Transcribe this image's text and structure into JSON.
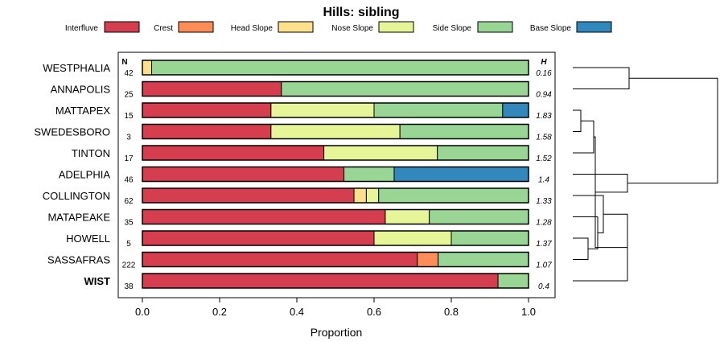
{
  "chart_data": {
    "type": "bar",
    "orientation": "horizontal",
    "stacked": true,
    "title": "Hills: sibling",
    "xlabel": "Proportion",
    "xlim": [
      0,
      1
    ],
    "xticks": [
      "0.0",
      "0.2",
      "0.4",
      "0.6",
      "0.8",
      "1.0"
    ],
    "xtick_values": [
      0,
      0.2,
      0.4,
      0.6,
      0.8,
      1.0
    ],
    "n_header": "N",
    "h_header": "H",
    "categories": [
      "WESTPHALIA",
      "ANNAPOLIS",
      "MATTAPEX",
      "SWEDESBORO",
      "TINTON",
      "ADELPHIA",
      "COLLINGTON",
      "MATAPEAKE",
      "HOWELL",
      "SASSAFRAS",
      "WIST"
    ],
    "bold_category": "WIST",
    "n": [
      "42",
      "25",
      "15",
      "3",
      "17",
      "46",
      "62",
      "35",
      "5",
      "222",
      "38"
    ],
    "h": [
      "0.16",
      "0.94",
      "1.83",
      "1.58",
      "1.52",
      "1.4",
      "1.33",
      "1.28",
      "1.37",
      "1.07",
      "0.4"
    ],
    "series": [
      {
        "name": "Interfluve",
        "color": "#d53e4f",
        "values": [
          0,
          0.36,
          0.333,
          0.333,
          0.47,
          0.522,
          0.548,
          0.629,
          0.6,
          0.712,
          0.921
        ]
      },
      {
        "name": "Crest",
        "color": "#fc8d59",
        "values": [
          0,
          0,
          0,
          0,
          0,
          0,
          0,
          0,
          0,
          0.054,
          0
        ]
      },
      {
        "name": "Head Slope",
        "color": "#fee08b",
        "values": [
          0.024,
          0,
          0,
          0,
          0,
          0,
          0.032,
          0,
          0,
          0,
          0
        ]
      },
      {
        "name": "Nose Slope",
        "color": "#e6f598",
        "values": [
          0,
          0,
          0.267,
          0.334,
          0.294,
          0,
          0.032,
          0.114,
          0.2,
          0,
          0
        ]
      },
      {
        "name": "Side Slope",
        "color": "#99d594",
        "values": [
          0.976,
          0.64,
          0.333,
          0.333,
          0.236,
          0.13,
          0.388,
          0.257,
          0.2,
          0.234,
          0.079
        ]
      },
      {
        "name": "Base Slope",
        "color": "#3288bd",
        "values": [
          0,
          0,
          0.067,
          0,
          0,
          0.348,
          0,
          0,
          0,
          0,
          0
        ]
      }
    ],
    "dendrogram": {
      "merges": [
        [
          0,
          1
        ],
        [
          2,
          3
        ],
        [
          4,
          "m1"
        ],
        [
          8,
          9
        ],
        [
          7,
          "m3"
        ],
        [
          6,
          "m4"
        ],
        [
          10,
          "m5"
        ],
        [
          "m2",
          "m6"
        ],
        [
          5,
          "m7"
        ],
        [
          "m0",
          "m8"
        ]
      ]
    }
  }
}
